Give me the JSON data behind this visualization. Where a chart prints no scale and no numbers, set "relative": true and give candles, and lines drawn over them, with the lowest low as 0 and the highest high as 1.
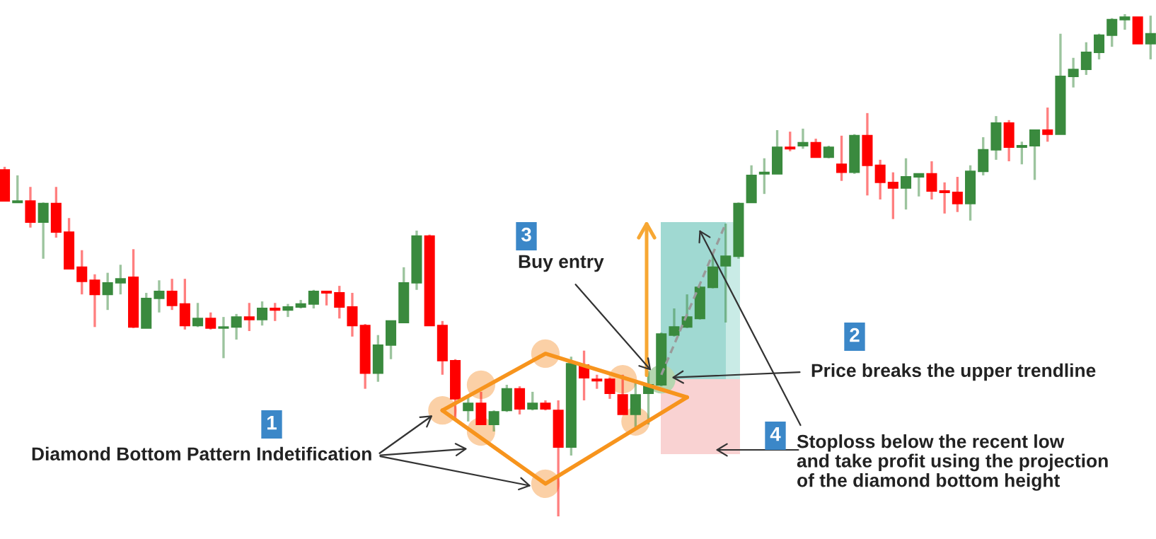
{
  "chart_data": {
    "type": "candlestick",
    "relative": true,
    "series": [
      {
        "type": "line",
        "color": "#f7941d",
        "values": [
          null,
          null,
          null,
          null,
          null,
          null,
          null,
          null,
          null,
          null,
          null,
          null,
          null,
          null,
          null,
          null,
          null,
          null,
          null,
          null,
          null,
          null,
          null,
          null,
          null,
          null,
          null,
          null,
          null,
          null,
          null,
          null,
          null,
          null,
          0.211,
          null,
          null,
          null,
          null,
          null,
          null,
          null,
          0.324,
          null,
          null,
          null,
          null,
          null,
          null,
          null,
          null,
          null,
          null,
          0.237,
          null,
          null,
          null,
          null,
          null,
          null,
          null,
          null,
          null,
          null,
          null,
          null,
          null,
          null,
          null,
          null,
          null,
          null,
          null,
          null,
          null,
          null,
          null,
          null,
          null,
          null,
          null,
          null,
          null,
          null,
          null,
          null,
          null,
          null,
          null,
          null
        ]
      },
      {
        "type": "line",
        "color": "#f7941d",
        "values": [
          null,
          null,
          null,
          null,
          null,
          null,
          null,
          null,
          null,
          null,
          null,
          null,
          null,
          null,
          null,
          null,
          null,
          null,
          null,
          null,
          null,
          null,
          null,
          null,
          null,
          null,
          null,
          null,
          null,
          null,
          null,
          null,
          null,
          null,
          0.211,
          null,
          null,
          null,
          null,
          null,
          null,
          null,
          0.065,
          null,
          null,
          null,
          null,
          null,
          null,
          null,
          null,
          null,
          null,
          0.237,
          null,
          null,
          null,
          null,
          null,
          null,
          null,
          null,
          null,
          null,
          null,
          null,
          null,
          null,
          null,
          null,
          null,
          null,
          null,
          null,
          null,
          null,
          null,
          null,
          null,
          null,
          null,
          null,
          null,
          null,
          null,
          null,
          null,
          null,
          null,
          null
        ]
      },
      {
        "type": "scatter",
        "color": "#fbd0a6",
        "marker": "circle",
        "values": [
          null,
          null,
          null,
          null,
          null,
          null,
          null,
          null,
          null,
          null,
          null,
          null,
          null,
          null,
          null,
          null,
          null,
          null,
          null,
          null,
          null,
          null,
          null,
          null,
          null,
          null,
          null,
          null,
          null,
          null,
          null,
          null,
          null,
          null,
          0.211,
          null,
          null,
          0.262,
          null,
          null,
          null,
          null,
          0.324,
          null,
          null,
          null,
          null,
          null,
          0.273,
          null,
          null,
          null,
          null,
          null,
          null,
          null,
          null,
          null,
          null,
          null,
          null,
          null,
          null,
          null,
          null,
          null,
          null,
          null,
          null,
          null,
          null,
          null,
          null,
          null,
          null,
          null,
          null,
          null,
          null,
          null,
          null,
          null,
          null,
          null,
          null,
          null,
          null,
          null,
          null,
          null
        ]
      },
      {
        "type": "scatter",
        "color": "#fbd0a6",
        "marker": "circle",
        "values": [
          null,
          null,
          null,
          null,
          null,
          null,
          null,
          null,
          null,
          null,
          null,
          null,
          null,
          null,
          null,
          null,
          null,
          null,
          null,
          null,
          null,
          null,
          null,
          null,
          null,
          null,
          null,
          null,
          null,
          null,
          null,
          null,
          null,
          null,
          null,
          null,
          null,
          0.169,
          null,
          null,
          null,
          null,
          0.065,
          null,
          null,
          null,
          null,
          null,
          null,
          0.189,
          null,
          null,
          null,
          null,
          null,
          null,
          null,
          null,
          null,
          null,
          null,
          null,
          null,
          null,
          null,
          null,
          null,
          null,
          null,
          null,
          null,
          null,
          null,
          null,
          null,
          null,
          null,
          null,
          null,
          null,
          null,
          null,
          null,
          null,
          null,
          null,
          null,
          null,
          null,
          null
        ]
      },
      {
        "type": "scatter",
        "color": "#b5d6b0",
        "marker": "circle",
        "values": [
          null,
          null,
          null,
          null,
          null,
          null,
          null,
          null,
          null,
          null,
          null,
          null,
          null,
          null,
          null,
          null,
          null,
          null,
          null,
          null,
          null,
          null,
          null,
          null,
          null,
          null,
          null,
          null,
          null,
          null,
          null,
          null,
          null,
          null,
          null,
          null,
          null,
          null,
          null,
          null,
          null,
          null,
          null,
          null,
          null,
          null,
          null,
          null,
          null,
          null,
          null,
          0.273,
          null,
          null,
          null,
          null,
          null,
          null,
          null,
          null,
          null,
          null,
          null,
          null,
          null,
          null,
          null,
          null,
          null,
          null,
          null,
          null,
          null,
          null,
          null,
          null,
          null,
          null,
          null,
          null,
          null,
          null,
          null,
          null,
          null,
          null,
          null,
          null,
          null,
          null
        ]
      },
      {
        "type": "line",
        "color": "#9a9a9a",
        "line_style": "dashed",
        "values": [
          null,
          null,
          null,
          null,
          null,
          null,
          null,
          null,
          null,
          null,
          null,
          null,
          null,
          null,
          null,
          null,
          null,
          null,
          null,
          null,
          null,
          null,
          null,
          null,
          null,
          null,
          null,
          null,
          null,
          null,
          null,
          null,
          null,
          null,
          null,
          null,
          null,
          null,
          null,
          null,
          null,
          null,
          null,
          null,
          null,
          null,
          null,
          null,
          null,
          null,
          null,
          0.282,
          null,
          null,
          null,
          null,
          0.583,
          null,
          null,
          null,
          null,
          null,
          null,
          null,
          null,
          null,
          null,
          null,
          null,
          null,
          null,
          null,
          null,
          null,
          null,
          null,
          null,
          null,
          null,
          null,
          null,
          null,
          null,
          null,
          null,
          null,
          null,
          null,
          null,
          null
        ]
      }
    ],
    "categories": [
      null,
      null,
      null,
      null,
      null,
      null,
      null,
      null,
      null,
      null,
      null,
      null,
      null,
      null,
      null,
      null,
      null,
      null,
      null,
      null,
      null,
      null,
      null,
      null,
      null,
      null,
      null,
      null,
      null,
      null,
      null,
      null,
      null,
      null,
      null,
      null,
      null,
      null,
      null,
      null,
      null,
      null,
      null,
      null,
      null,
      null,
      null,
      null,
      null,
      null,
      null,
      null,
      null,
      null,
      null,
      null,
      null,
      null,
      null,
      null,
      null,
      null,
      null,
      null,
      null,
      null,
      null,
      null,
      null,
      null,
      null,
      null,
      null,
      null,
      null,
      null,
      null,
      null,
      null,
      null,
      null,
      null,
      null,
      null,
      null,
      null,
      null,
      null,
      null,
      null
    ],
    "ohlc": [
      [
        0.69,
        0.696,
        0.628,
        0.628
      ],
      [
        0.625,
        0.679,
        0.625,
        0.628
      ],
      [
        0.628,
        0.656,
        0.575,
        0.586
      ],
      [
        0.586,
        0.625,
        0.513,
        0.623
      ],
      [
        0.623,
        0.656,
        0.555,
        0.566
      ],
      [
        0.566,
        0.594,
        0.493,
        0.493
      ],
      [
        0.496,
        0.53,
        0.442,
        0.468
      ],
      [
        0.47,
        0.482,
        0.377,
        0.442
      ],
      [
        0.442,
        0.485,
        0.411,
        0.465
      ],
      [
        0.465,
        0.501,
        0.442,
        0.473
      ],
      [
        0.476,
        0.532,
        0.375,
        0.377
      ],
      [
        0.375,
        0.445,
        0.375,
        0.434
      ],
      [
        0.434,
        0.47,
        0.406,
        0.448
      ],
      [
        0.448,
        0.473,
        0.411,
        0.42
      ],
      [
        0.423,
        0.473,
        0.372,
        0.38
      ],
      [
        0.38,
        0.425,
        0.377,
        0.394
      ],
      [
        0.394,
        0.406,
        0.372,
        0.375
      ],
      [
        0.375,
        0.397,
        0.315,
        0.377
      ],
      [
        0.377,
        0.403,
        0.352,
        0.397
      ],
      [
        0.397,
        0.425,
        0.369,
        0.392
      ],
      [
        0.392,
        0.428,
        0.38,
        0.414
      ],
      [
        0.414,
        0.425,
        0.389,
        0.411
      ],
      [
        0.411,
        0.423,
        0.397,
        0.417
      ],
      [
        0.417,
        0.431,
        0.414,
        0.423
      ],
      [
        0.423,
        0.451,
        0.414,
        0.448
      ],
      [
        0.448,
        0.448,
        0.42,
        0.445
      ],
      [
        0.445,
        0.459,
        0.394,
        0.417
      ],
      [
        0.417,
        0.445,
        0.358,
        0.38
      ],
      [
        0.38,
        0.383,
        0.254,
        0.285
      ],
      [
        0.285,
        0.361,
        0.268,
        0.341
      ],
      [
        0.341,
        0.389,
        0.313,
        0.389
      ],
      [
        0.386,
        0.496,
        0.386,
        0.465
      ],
      [
        0.465,
        0.569,
        0.451,
        0.558
      ],
      [
        0.558,
        0.561,
        0.38,
        0.38
      ],
      [
        0.38,
        0.389,
        0.282,
        0.31
      ],
      [
        0.31,
        0.313,
        0.192,
        0.234
      ],
      [
        0.211,
        0.239,
        0.189,
        0.225
      ],
      [
        0.225,
        0.248,
        0.183,
        0.183
      ],
      [
        0.183,
        0.211,
        0.169,
        0.208
      ],
      [
        0.211,
        0.262,
        0.208,
        0.254
      ],
      [
        0.254,
        0.259,
        0.203,
        0.214
      ],
      [
        0.214,
        0.248,
        0.211,
        0.225
      ],
      [
        0.225,
        0.231,
        0.211,
        0.214
      ],
      [
        0.211,
        0.231,
        0,
        0.138
      ],
      [
        0.138,
        0.318,
        0.121,
        0.304
      ],
      [
        0.301,
        0.33,
        0.231,
        0.276
      ],
      [
        0.273,
        0.282,
        0.254,
        0.27
      ],
      [
        0.273,
        0.276,
        0.234,
        0.245
      ],
      [
        0.242,
        0.282,
        0.203,
        0.203
      ],
      [
        0.203,
        0.268,
        0.172,
        0.242
      ],
      [
        0.245,
        0.29,
        0.183,
        0.262
      ],
      [
        0.262,
        0.366,
        0.259,
        0.363
      ],
      [
        0.361,
        0.414,
        0.358,
        0.377
      ],
      [
        0.377,
        0.442,
        0.375,
        0.397
      ],
      [
        0.394,
        0.459,
        0.392,
        0.456
      ],
      [
        0.456,
        0.521,
        0.454,
        0.496
      ],
      [
        0.499,
        0.583,
        0.386,
        0.518
      ],
      [
        0.518,
        0.625,
        0.513,
        0.623
      ],
      [
        0.625,
        0.699,
        0.625,
        0.679
      ],
      [
        0.682,
        0.713,
        0.642,
        0.685
      ],
      [
        0.682,
        0.769,
        0.682,
        0.735
      ],
      [
        0.735,
        0.766,
        0.727,
        0.732
      ],
      [
        0.738,
        0.772,
        0.732,
        0.744
      ],
      [
        0.744,
        0.752,
        0.715,
        0.715
      ],
      [
        0.715,
        0.738,
        0.713,
        0.735
      ],
      [
        0.701,
        0.758,
        0.668,
        0.685
      ],
      [
        0.685,
        0.761,
        0.682,
        0.758
      ],
      [
        0.758,
        0.803,
        0.639,
        0.699
      ],
      [
        0.699,
        0.71,
        0.631,
        0.665
      ],
      [
        0.665,
        0.685,
        0.592,
        0.654
      ],
      [
        0.654,
        0.713,
        0.611,
        0.676
      ],
      [
        0.676,
        0.682,
        0.637,
        0.682
      ],
      [
        0.682,
        0.707,
        0.631,
        0.648
      ],
      [
        0.648,
        0.665,
        0.603,
        0.645
      ],
      [
        0.645,
        0.676,
        0.606,
        0.623
      ],
      [
        0.623,
        0.699,
        0.589,
        0.687
      ],
      [
        0.687,
        0.755,
        0.679,
        0.73
      ],
      [
        0.73,
        0.797,
        0.71,
        0.783
      ],
      [
        0.783,
        0.789,
        0.707,
        0.735
      ],
      [
        0.735,
        0.746,
        0.701,
        0.738
      ],
      [
        0.738,
        0.769,
        0.67,
        0.769
      ],
      [
        0.769,
        0.814,
        0.746,
        0.761
      ],
      [
        0.761,
        0.961,
        0.761,
        0.876
      ],
      [
        0.876,
        0.913,
        0.854,
        0.89
      ],
      [
        0.89,
        0.944,
        0.879,
        0.924
      ],
      [
        0.924,
        0.961,
        0.91,
        0.958
      ],
      [
        0.958,
        0.992,
        0.935,
        0.989
      ],
      [
        0.989,
        1,
        0.969,
        0.994
      ],
      [
        0.994,
        0.994,
        0.941,
        0.941
      ],
      [
        0.941,
        0.997,
        0.91,
        0.961
      ]
    ],
    "annotations": [
      "1",
      "Diamond Bottom Pattern Indetification",
      "2",
      "Price breaks the upper trendline",
      "3",
      "Buy entry",
      "4",
      "Stoploss below the recent low\nand take profit using the projection\nof the diamond bottom height"
    ]
  }
}
